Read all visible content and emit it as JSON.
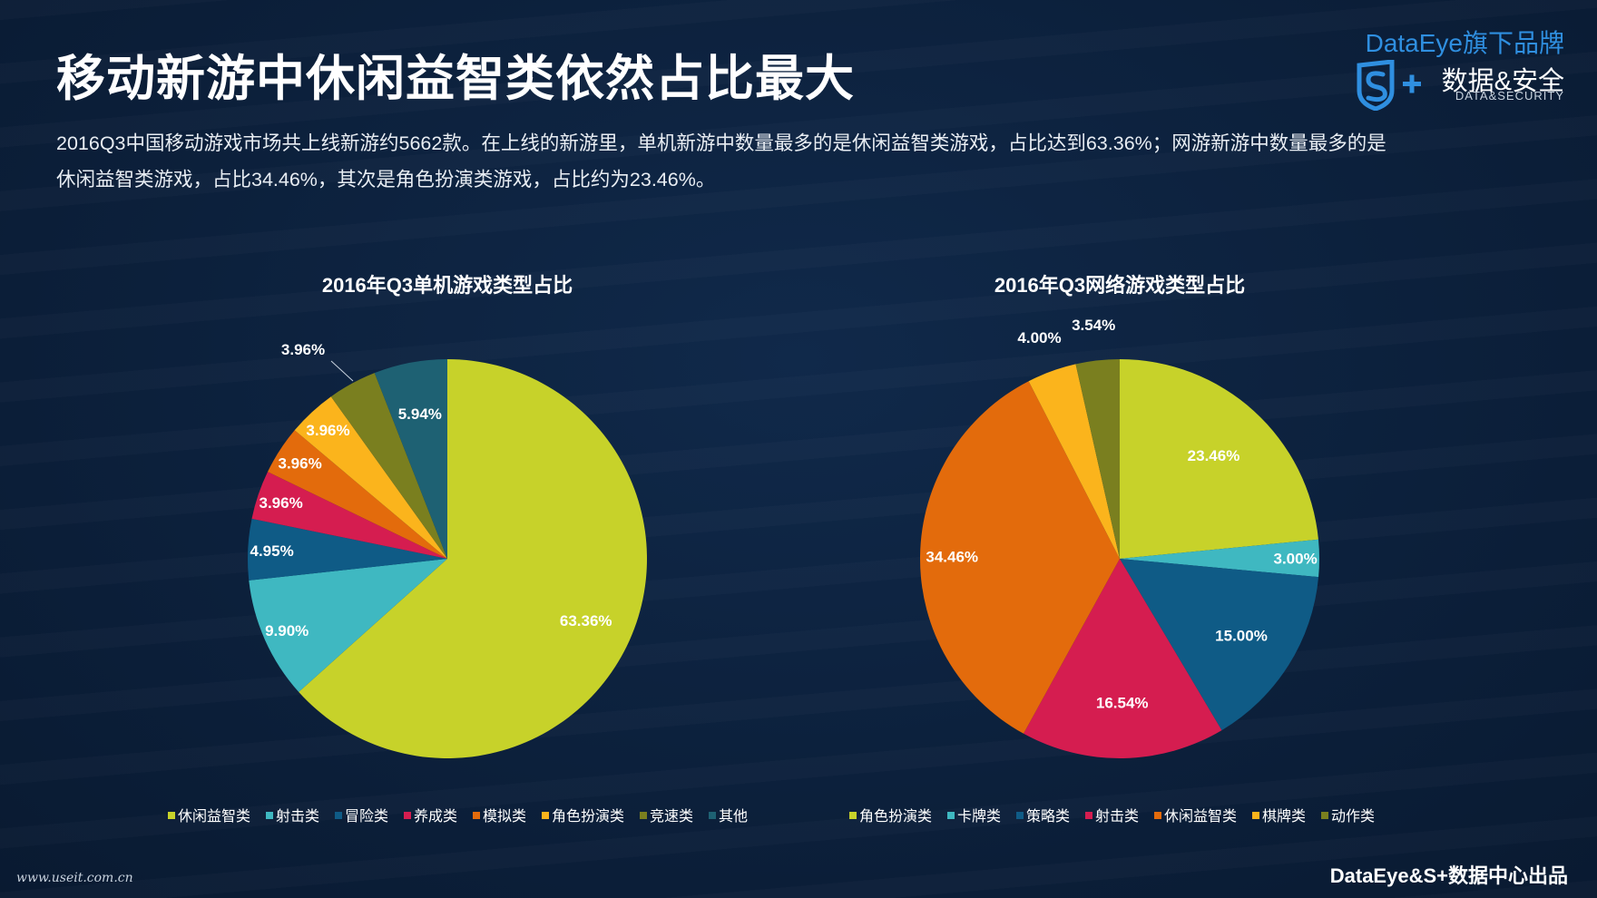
{
  "header": {
    "title": "移动新游中休闲益智类依然占比最大",
    "desc_line1": "2016Q3中国移动游戏市场共上线新游约5662款。在上线的新游里，单机新游中数量最多的是休闲益智类游戏，占比达到63.36%；网游新游中数量最多的是",
    "desc_line2": "休闲益智类游戏，占比34.46%，其次是角色扮演类游戏，占比约为23.46%。"
  },
  "brand": {
    "top": "DataEye旗下品牌",
    "cn": "数据&安全",
    "en": "DATA&SECURITY",
    "logo_icon": "s-plus-shield-icon"
  },
  "footer": {
    "left": "www.useit.com.cn",
    "right": "DataEye&S+数据中心出品"
  },
  "chart_data": [
    {
      "type": "pie",
      "title": "2016年Q3单机游戏类型占比",
      "categories": [
        "休闲益智类",
        "射击类",
        "冒险类",
        "养成类",
        "模拟类",
        "角色扮演类",
        "竞速类",
        "其他"
      ],
      "values": [
        63.36,
        9.9,
        4.95,
        3.96,
        3.96,
        3.96,
        3.96,
        5.94
      ],
      "labels": [
        "63.36%",
        "9.90%",
        "4.95%",
        "3.96%",
        "3.96%",
        "3.96%",
        "3.96%",
        "5.94%"
      ],
      "colors": [
        "#c7d22a",
        "#3fb8c1",
        "#0f5b86",
        "#d51d50",
        "#e36b0c",
        "#fbb41c",
        "#7a7f1f",
        "#1e6173"
      ],
      "legend": "bottom",
      "start": "top",
      "direction": "clockwise"
    },
    {
      "type": "pie",
      "title": "2016年Q3网络游戏类型占比",
      "categories": [
        "角色扮演类",
        "卡牌类",
        "策略类",
        "射击类",
        "休闲益智类",
        "棋牌类",
        "动作类"
      ],
      "values": [
        23.46,
        3.0,
        15.0,
        16.54,
        34.46,
        4.0,
        3.54
      ],
      "labels": [
        "23.46%",
        "3.00%",
        "15.00%",
        "16.54%",
        "34.46%",
        "4.00%",
        "3.54%"
      ],
      "colors": [
        "#c7d22a",
        "#3fb8c1",
        "#0f5b86",
        "#d51d50",
        "#e36b0c",
        "#fbb41c",
        "#7a7f1f"
      ],
      "legend": "bottom",
      "start": "top",
      "direction": "clockwise"
    }
  ]
}
